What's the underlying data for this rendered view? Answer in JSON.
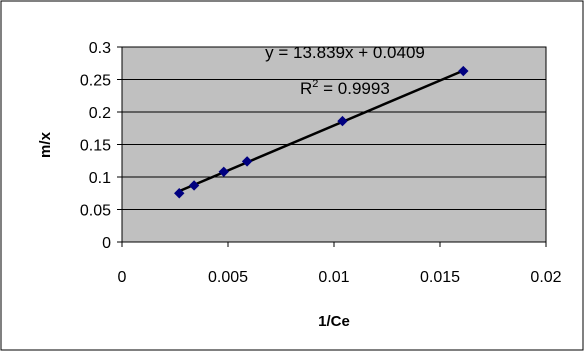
{
  "chart_data": {
    "type": "scatter",
    "title": "",
    "xlabel": "1/Ce",
    "ylabel": "m/x",
    "xlim": [
      0,
      0.02
    ],
    "ylim": [
      0,
      0.3
    ],
    "x_ticks": [
      0,
      0.005,
      0.01,
      0.015,
      0.02
    ],
    "y_ticks": [
      0,
      0.05,
      0.1,
      0.15,
      0.2,
      0.25,
      0.3
    ],
    "x_tick_labels": [
      "0",
      "0.005",
      "0.01",
      "0.015",
      "0.02"
    ],
    "y_tick_labels": [
      "0",
      "0.05",
      "0.1",
      "0.15",
      "0.2",
      "0.25",
      "0.3"
    ],
    "grid": "horizontal",
    "legend": "none",
    "points": [
      {
        "x": 0.0027,
        "y": 0.075
      },
      {
        "x": 0.0034,
        "y": 0.087
      },
      {
        "x": 0.0048,
        "y": 0.108
      },
      {
        "x": 0.0059,
        "y": 0.124
      },
      {
        "x": 0.0104,
        "y": 0.186
      },
      {
        "x": 0.0161,
        "y": 0.263
      }
    ],
    "trendline": {
      "slope": 13.839,
      "intercept": 0.0409,
      "x_from": 0.0027,
      "x_to": 0.0161
    },
    "equation_label": "y = 13.839x + 0.0409",
    "r2_prefix": "R",
    "r2_superscript": "2",
    "r2_value_text": " = 0.9993",
    "colors": {
      "plot_background": "#c0c0c0",
      "marker": "#000080",
      "trendline": "#000000",
      "gridline": "#000000",
      "frame": "#000000"
    },
    "marker_shape": "diamond"
  }
}
